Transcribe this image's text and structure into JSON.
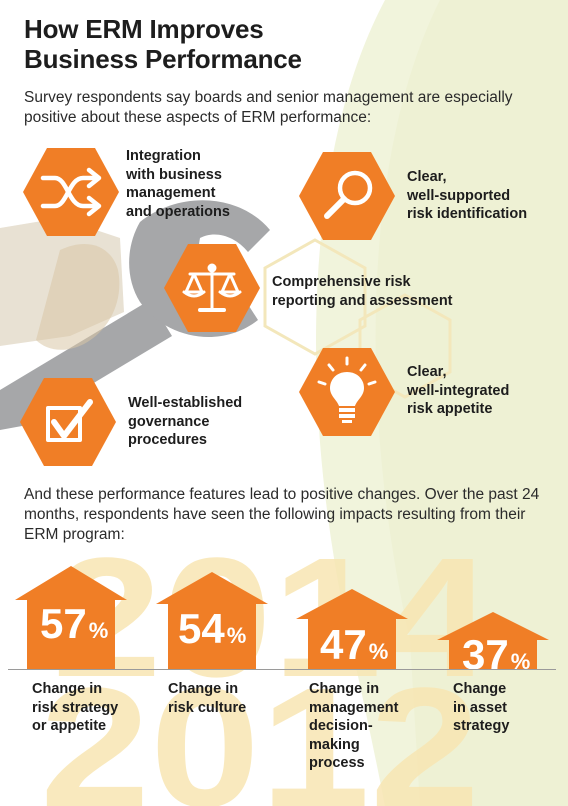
{
  "title": [
    "How ERM Improves",
    "Business Performance"
  ],
  "intro": "Survey respondents say boards and senior management are especially positive about these aspects of ERM performance:",
  "features": [
    {
      "icon": "shuffle-icon",
      "lines": [
        "Integration",
        "with business",
        "management",
        "and operations"
      ]
    },
    {
      "icon": "magnifier-icon",
      "lines": [
        "Clear,",
        "well-supported",
        "risk identification"
      ]
    },
    {
      "icon": "scales-icon",
      "lines": [
        "Comprehensive risk",
        "reporting and assessment"
      ]
    },
    {
      "icon": "lightbulb-icon",
      "lines": [
        "Clear,",
        "well-integrated",
        "risk appetite"
      ]
    },
    {
      "icon": "checkbox-icon",
      "lines": [
        "Well-established",
        "governance",
        "procedures"
      ]
    }
  ],
  "impacts_intro": "And these performance features lead to positive changes. Over the past 24 months, respondents have seen the following impacts resulting from their ERM program:",
  "impacts": [
    {
      "value": 57,
      "unit": "%",
      "lines": [
        "Change in",
        "risk strategy",
        "or appetite"
      ]
    },
    {
      "value": 54,
      "unit": "%",
      "lines": [
        "Change in",
        "risk culture"
      ]
    },
    {
      "value": 47,
      "unit": "%",
      "lines": [
        "Change in",
        "management",
        "decision-",
        "making",
        "process"
      ]
    },
    {
      "value": 37,
      "unit": "%",
      "lines": [
        "Change",
        "in asset",
        "strategy"
      ]
    }
  ],
  "watermark_years": [
    "2014",
    "2012"
  ],
  "colors": {
    "orange": "#f07e26",
    "text": "#1d1d1d",
    "background_green": "#f1f4dc",
    "watermark": "#f8e6b3",
    "wrench": "#a6a7a9"
  }
}
